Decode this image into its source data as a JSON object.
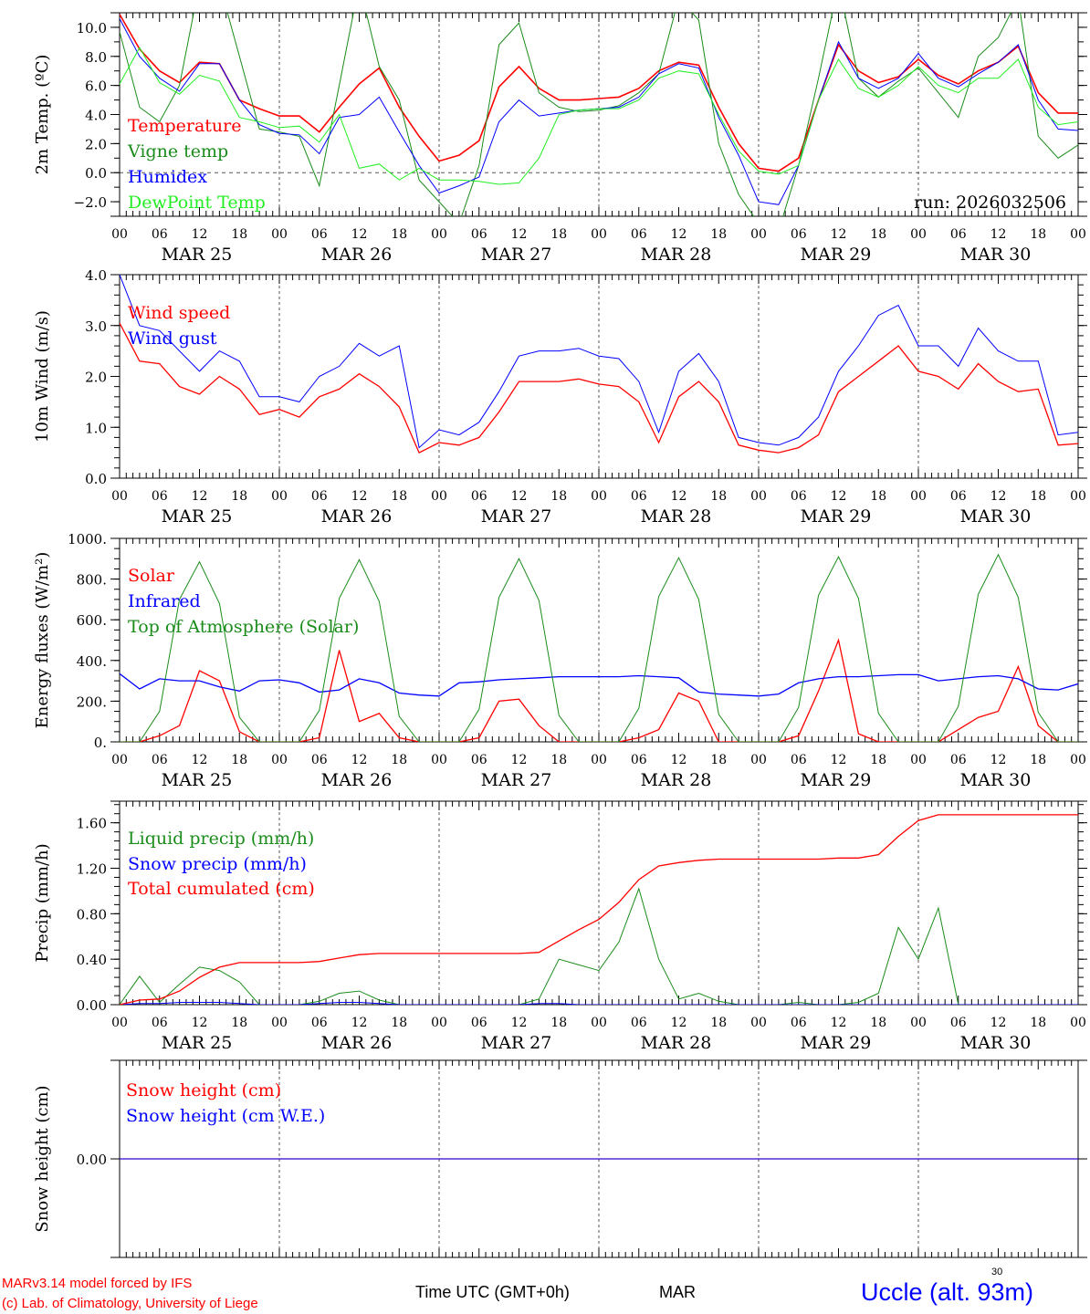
{
  "colors": {
    "red": "#ff0000",
    "darkgreen": "#1a8c1a",
    "blue": "#0000ff",
    "lime": "#22ee22"
  },
  "x_axis": {
    "hour_labels": [
      "00",
      "06",
      "12",
      "18",
      "00",
      "06",
      "12",
      "18",
      "00",
      "06",
      "12",
      "18",
      "00",
      "06",
      "12",
      "18",
      "00",
      "06",
      "12",
      "18",
      "00",
      "06",
      "12",
      "18",
      "00"
    ],
    "dates": [
      "MAR 25",
      "MAR 26",
      "MAR 27",
      "MAR 28",
      "MAR 29",
      "MAR 30"
    ],
    "step_hours": 3,
    "days": 6
  },
  "chart_data": [
    {
      "type": "line",
      "ylabel": "2m Temp. (ºC)",
      "ylim": [
        -3,
        11
      ],
      "yticks": [
        -2,
        0,
        2,
        4,
        6,
        8,
        10
      ],
      "ytick_labels": [
        "−2.0",
        "0.0",
        "2.0",
        "4.0",
        "6.0",
        "8.0",
        "10.0"
      ],
      "minor": 1,
      "zero_line": true,
      "annotation": "run: 2026032506",
      "series": [
        {
          "name": "Temperature",
          "color": "#ff0000",
          "width": 1.6,
          "values": [
            10.9,
            8.5,
            7.0,
            6.2,
            7.6,
            7.5,
            5.0,
            4.4,
            3.9,
            3.9,
            2.8,
            4.5,
            6.1,
            7.2,
            4.5,
            2.5,
            0.8,
            1.2,
            2.2,
            5.9,
            7.3,
            5.8,
            5.0,
            5.0,
            5.1,
            5.2,
            5.8,
            7.0,
            7.6,
            7.4,
            4.5,
            2.0,
            0.3,
            0.1,
            1.0,
            5.0,
            8.8,
            7.0,
            6.2,
            6.6,
            7.8,
            6.7,
            6.1,
            7.0,
            7.6,
            8.7,
            5.5,
            4.1,
            4.1
          ]
        },
        {
          "name": "Vigne temp",
          "color": "#1a8c1a",
          "width": 1,
          "values": [
            9.7,
            4.5,
            3.5,
            6.0,
            13,
            13,
            8.0,
            3.0,
            2.8,
            2.5,
            -0.9,
            6.0,
            13,
            7.3,
            5.0,
            -0.5,
            -2.0,
            -3.5,
            0.5,
            8.8,
            10.3,
            5.5,
            4.5,
            4.2,
            4.3,
            4.6,
            5.5,
            6.8,
            12,
            10.5,
            2.0,
            -1.5,
            -3.5,
            -4.0,
            0.5,
            6.5,
            13,
            6.5,
            5.2,
            6.3,
            7.2,
            5.5,
            3.8,
            8.0,
            9.3,
            12,
            2.5,
            1.0,
            1.9
          ]
        },
        {
          "name": "Humidex",
          "color": "#0000ff",
          "width": 1,
          "values": [
            10.6,
            8.0,
            6.5,
            5.6,
            7.5,
            7.5,
            5.0,
            3.3,
            2.7,
            2.6,
            1.3,
            3.8,
            4.0,
            5.2,
            2.8,
            0.5,
            -1.4,
            -0.9,
            -0.3,
            3.5,
            5.0,
            3.9,
            4.1,
            4.3,
            4.4,
            4.5,
            5.2,
            6.8,
            7.5,
            7.2,
            3.8,
            1.2,
            -2.0,
            -2.2,
            0.5,
            5.0,
            9.0,
            6.5,
            5.8,
            6.5,
            8.2,
            6.5,
            5.9,
            6.8,
            7.6,
            8.8,
            5.0,
            3.0,
            2.9
          ]
        },
        {
          "name": "DewPoint Temp",
          "color": "#22ee22",
          "width": 1,
          "values": [
            6.1,
            8.6,
            6.2,
            5.4,
            6.7,
            6.3,
            3.8,
            3.5,
            3.1,
            3.2,
            2.1,
            4.0,
            0.3,
            0.6,
            -0.5,
            0.3,
            -0.5,
            -0.5,
            -0.6,
            -0.8,
            -0.7,
            1.0,
            4.0,
            4.3,
            4.4,
            4.4,
            5.0,
            6.5,
            7.0,
            6.8,
            4.0,
            1.5,
            0.1,
            -0.1,
            0.5,
            5.0,
            7.8,
            5.8,
            5.2,
            6.0,
            7.3,
            6.0,
            5.5,
            6.5,
            6.5,
            7.8,
            4.5,
            3.3,
            3.5
          ]
        }
      ]
    },
    {
      "type": "line",
      "ylabel": "10m Wind (m/s)",
      "ylim": [
        0,
        4
      ],
      "yticks": [
        0,
        1,
        2,
        3,
        4
      ],
      "ytick_labels": [
        "0.0",
        "1.0",
        "2.0",
        "3.0",
        "4.0"
      ],
      "minor": 0.2,
      "series": [
        {
          "name": "Wind speed",
          "color": "#ff0000",
          "width": 1.3,
          "values": [
            3.05,
            2.3,
            2.25,
            1.8,
            1.65,
            2.0,
            1.75,
            1.25,
            1.35,
            1.2,
            1.6,
            1.75,
            2.05,
            1.8,
            1.4,
            0.5,
            0.7,
            0.65,
            0.8,
            1.3,
            1.9,
            1.9,
            1.9,
            1.95,
            1.85,
            1.8,
            1.5,
            0.7,
            1.6,
            1.9,
            1.5,
            0.65,
            0.55,
            0.5,
            0.6,
            0.85,
            1.7,
            2.0,
            2.3,
            2.6,
            2.1,
            2.0,
            1.75,
            2.25,
            1.9,
            1.7,
            1.75,
            0.65,
            0.68
          ]
        },
        {
          "name": "Wind gust",
          "color": "#0000ff",
          "width": 1,
          "values": [
            4.0,
            3.0,
            2.9,
            2.5,
            2.1,
            2.5,
            2.3,
            1.6,
            1.6,
            1.5,
            2.0,
            2.2,
            2.65,
            2.4,
            2.6,
            0.6,
            0.95,
            0.85,
            1.1,
            1.7,
            2.4,
            2.5,
            2.5,
            2.55,
            2.4,
            2.35,
            1.9,
            0.9,
            2.1,
            2.45,
            1.9,
            0.8,
            0.7,
            0.65,
            0.8,
            1.2,
            2.1,
            2.6,
            3.2,
            3.4,
            2.6,
            2.6,
            2.2,
            2.95,
            2.5,
            2.3,
            2.3,
            0.85,
            0.9
          ]
        }
      ]
    },
    {
      "type": "line",
      "ylabel": "Energy fluxes (W/m²)",
      "ylim": [
        0,
        1000
      ],
      "yticks": [
        0,
        200,
        400,
        600,
        800,
        1000
      ],
      "ytick_labels": [
        "0.",
        "200.",
        "400.",
        "600.",
        "800.",
        "1000."
      ],
      "minor": 50,
      "series": [
        {
          "name": "Solar",
          "color": "#ff0000",
          "width": 1.3,
          "values": [
            0,
            0,
            30,
            80,
            350,
            300,
            50,
            0,
            0,
            0,
            20,
            450,
            100,
            140,
            20,
            0,
            0,
            0,
            20,
            200,
            210,
            80,
            0,
            0,
            0,
            0,
            20,
            60,
            240,
            200,
            0,
            0,
            0,
            0,
            30,
            250,
            500,
            40,
            0,
            0,
            0,
            0,
            60,
            120,
            150,
            370,
            80,
            0,
            0
          ]
        },
        {
          "name": "Infrared",
          "color": "#0000ff",
          "width": 1.3,
          "values": [
            335,
            260,
            310,
            300,
            300,
            270,
            250,
            300,
            305,
            290,
            245,
            255,
            310,
            290,
            240,
            230,
            225,
            290,
            295,
            305,
            310,
            315,
            320,
            320,
            320,
            320,
            325,
            320,
            315,
            245,
            235,
            230,
            225,
            235,
            290,
            310,
            320,
            320,
            325,
            330,
            330,
            300,
            310,
            320,
            325,
            310,
            260,
            255,
            285
          ]
        },
        {
          "name": "Top of Atmosphere (Solar)",
          "color": "#1a8c1a",
          "width": 1,
          "values": [
            0,
            0,
            150,
            700,
            885,
            680,
            120,
            0,
            0,
            0,
            155,
            705,
            895,
            690,
            125,
            0,
            0,
            0,
            160,
            710,
            900,
            695,
            130,
            0,
            0,
            0,
            165,
            715,
            905,
            700,
            135,
            0,
            0,
            0,
            170,
            720,
            910,
            705,
            140,
            0,
            0,
            0,
            175,
            725,
            920,
            710,
            145,
            0,
            0
          ]
        }
      ]
    },
    {
      "type": "line",
      "ylabel": "Precip (mm/h)",
      "ylim": [
        0,
        1.79
      ],
      "yticks": [
        0,
        0.4,
        0.8,
        1.2,
        1.6
      ],
      "ytick_labels": [
        "0.00",
        "0.40",
        "0.80",
        "1.20",
        "1.60"
      ],
      "minor": 0.08,
      "series": [
        {
          "name": "Liquid precip (mm/h)",
          "color": "#1a8c1a",
          "width": 1,
          "values": [
            0,
            0.25,
            0.02,
            0.18,
            0.33,
            0.3,
            0.2,
            0,
            0,
            0,
            0.03,
            0.1,
            0.12,
            0.04,
            0,
            0,
            0,
            0,
            0,
            0,
            0,
            0.05,
            0.4,
            0.35,
            0.3,
            0.55,
            1.02,
            0.4,
            0.05,
            0.1,
            0.03,
            0,
            0,
            0,
            0.02,
            0,
            0,
            0.02,
            0.1,
            0.68,
            0.4,
            0.85,
            0,
            0,
            0,
            0,
            0,
            0,
            0
          ]
        },
        {
          "name": "Snow precip (mm/h)",
          "color": "#0000ff",
          "width": 1,
          "values": [
            0,
            0.01,
            0.01,
            0.02,
            0.02,
            0.02,
            0.01,
            0,
            0,
            0,
            0.01,
            0.02,
            0.02,
            0.01,
            0,
            0,
            0,
            0,
            0,
            0,
            0,
            0.01,
            0.01,
            0,
            0,
            0,
            0,
            0,
            0,
            0,
            0,
            0,
            0,
            0,
            0,
            0,
            0,
            0,
            0,
            0,
            0,
            0,
            0,
            0,
            0,
            0,
            0,
            0,
            0
          ]
        },
        {
          "name": "Total cumulated (cm)",
          "color": "#ff0000",
          "width": 1.3,
          "values": [
            0,
            0.04,
            0.05,
            0.12,
            0.24,
            0.33,
            0.37,
            0.37,
            0.37,
            0.37,
            0.38,
            0.41,
            0.44,
            0.45,
            0.45,
            0.45,
            0.45,
            0.45,
            0.45,
            0.45,
            0.45,
            0.46,
            0.56,
            0.66,
            0.75,
            0.9,
            1.1,
            1.22,
            1.25,
            1.27,
            1.28,
            1.28,
            1.28,
            1.28,
            1.28,
            1.28,
            1.29,
            1.29,
            1.32,
            1.48,
            1.62,
            1.67,
            1.67,
            1.67,
            1.67,
            1.67,
            1.67,
            1.67,
            1.67
          ]
        }
      ]
    },
    {
      "type": "line",
      "ylabel": "Snow height (cm)",
      "ylim": [
        -1,
        1
      ],
      "yticks": [
        0
      ],
      "ytick_labels": [
        "0.00"
      ],
      "minor": null,
      "no_hour_labels": true,
      "series": [
        {
          "name": "Snow height (cm)",
          "color": "#ff0000",
          "width": 1.3,
          "values": [
            0,
            0,
            0,
            0,
            0,
            0,
            0,
            0,
            0,
            0,
            0,
            0,
            0,
            0,
            0,
            0,
            0,
            0,
            0,
            0,
            0,
            0,
            0,
            0,
            0,
            0,
            0,
            0,
            0,
            0,
            0,
            0,
            0,
            0,
            0,
            0,
            0,
            0,
            0,
            0,
            0,
            0,
            0,
            0,
            0,
            0,
            0,
            0,
            0
          ]
        },
        {
          "name": "Snow height (cm W.E.)",
          "color": "#0000ff",
          "width": 1,
          "values": [
            0,
            0,
            0,
            0,
            0,
            0,
            0,
            0,
            0,
            0,
            0,
            0,
            0,
            0,
            0,
            0,
            0,
            0,
            0,
            0,
            0,
            0,
            0,
            0,
            0,
            0,
            0,
            0,
            0,
            0,
            0,
            0,
            0,
            0,
            0,
            0,
            0,
            0,
            0,
            0,
            0,
            0,
            0,
            0,
            0,
            0,
            0,
            0,
            0
          ]
        }
      ]
    }
  ],
  "footer": {
    "model": "MARv3.14 model forced by IFS",
    "credit": "(c) Lab. of Climatology, University of Liege",
    "time_label": "Time UTC (GMT+0h)",
    "month": "MAR",
    "day": "30",
    "station": "Uccle (alt. 93m)"
  }
}
